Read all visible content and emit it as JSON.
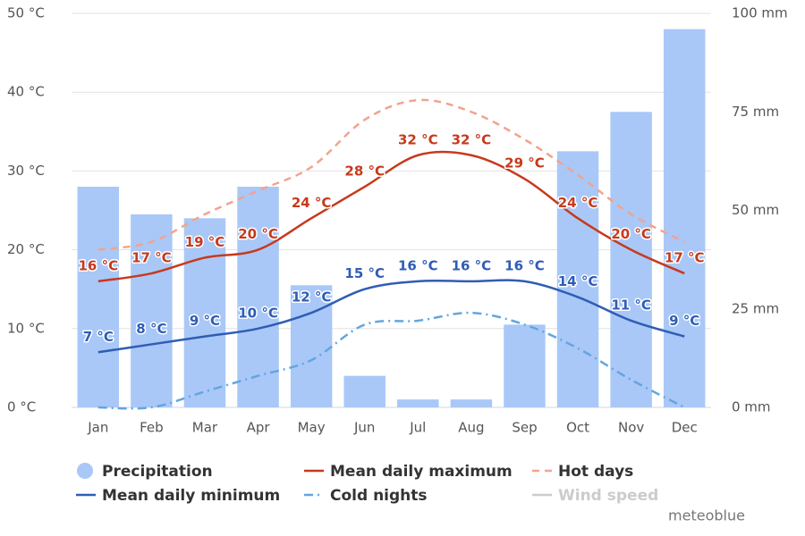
{
  "chart_data": {
    "type": "combo",
    "categories": [
      "Jan",
      "Feb",
      "Mar",
      "Apr",
      "May",
      "Jun",
      "Jul",
      "Aug",
      "Sep",
      "Oct",
      "Nov",
      "Dec"
    ],
    "ylim": [
      0,
      50
    ],
    "yticks": [
      {
        "value": 0,
        "label": "0 °C"
      },
      {
        "value": 10,
        "label": "10 °C"
      },
      {
        "value": 20,
        "label": "20 °C"
      },
      {
        "value": 30,
        "label": "30 °C"
      },
      {
        "value": 40,
        "label": "40 °C"
      },
      {
        "value": 50,
        "label": "50 °C"
      }
    ],
    "y2lim": [
      0,
      100
    ],
    "y2ticks": [
      {
        "value": 0,
        "label": "0 mm"
      },
      {
        "value": 25,
        "label": "25 mm"
      },
      {
        "value": 50,
        "label": "50 mm"
      },
      {
        "value": 75,
        "label": "75 mm"
      },
      {
        "value": 100,
        "label": "100 mm"
      }
    ],
    "grid": true,
    "series": [
      {
        "name": "Precipitation",
        "type": "bar",
        "axis": "y2",
        "color": "#a9c8f7",
        "values": [
          56,
          49,
          48,
          56,
          31,
          8,
          2,
          2,
          21,
          65,
          75,
          96
        ]
      },
      {
        "name": "Mean daily maximum",
        "type": "line",
        "color": "#c63a1c",
        "values": [
          16,
          17,
          19,
          20,
          24,
          28,
          32,
          32,
          29,
          24,
          20,
          17
        ],
        "value_labels": [
          "16 °C",
          "17 °C",
          "19 °C",
          "20 °C",
          "24 °C",
          "28 °C",
          "32 °C",
          "32 °C",
          "29 °C",
          "24 °C",
          "20 °C",
          "17 °C"
        ]
      },
      {
        "name": "Hot days",
        "type": "line",
        "dash": "dash",
        "color": "#f2a38e",
        "values": [
          20,
          21,
          24.5,
          27.5,
          30.5,
          36.5,
          39,
          37.5,
          34,
          29.5,
          24.5,
          21
        ]
      },
      {
        "name": "Mean daily minimum",
        "type": "line",
        "color": "#2f5db5",
        "values": [
          7,
          8,
          9,
          10,
          12,
          15,
          16,
          16,
          16,
          14,
          11,
          9
        ],
        "value_labels": [
          "7 °C",
          "8 °C",
          "9 °C",
          "10 °C",
          "12 °C",
          "15 °C",
          "16 °C",
          "16 °C",
          "16 °C",
          "14 °C",
          "11 °C",
          "9 °C"
        ]
      },
      {
        "name": "Cold nights",
        "type": "line",
        "dash": "dashdot",
        "color": "#63a6de",
        "values": [
          0,
          0,
          2,
          4,
          6,
          10.5,
          11,
          12,
          10.5,
          7.5,
          3.5,
          0
        ]
      },
      {
        "name": "Wind speed",
        "type": "line",
        "color": "#cccccc",
        "visible": false
      }
    ],
    "credit": "meteoblue"
  }
}
